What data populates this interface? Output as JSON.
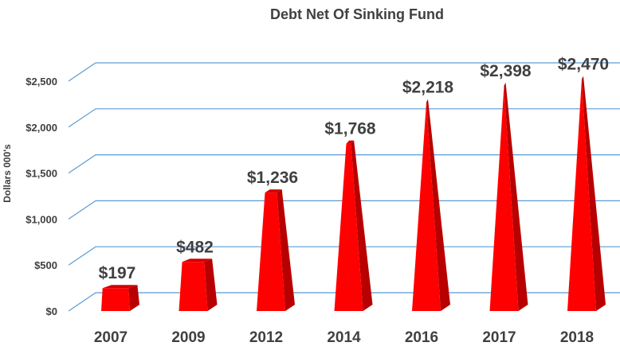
{
  "chart_data": {
    "type": "bar",
    "style": "3d-pyramid",
    "title": "Debt Net Of Sinking Fund",
    "ylabel": "Dollars 000's",
    "xlabel": "",
    "categories": [
      "2007",
      "2009",
      "2012",
      "2014",
      "2016",
      "2017",
      "2018"
    ],
    "values": [
      197,
      482,
      1236,
      1768,
      2218,
      2398,
      2470
    ],
    "data_labels": [
      "$197",
      "$482",
      "$1,236",
      "$1,768",
      "$2,218",
      "$2,398",
      "$2,470"
    ],
    "yticks": [
      0,
      500,
      1000,
      1500,
      2000,
      2500
    ],
    "ytick_labels": [
      "$0",
      "$500",
      "$1,000",
      "$1,500",
      "$2,000",
      "$2,500"
    ],
    "ylim": [
      0,
      2500
    ],
    "grid": true,
    "legend": "none",
    "colors": {
      "bar_front": "#ff0000",
      "bar_side": "#b80000",
      "bar_top": "#d40000",
      "grid": "#5b9bd5",
      "text": "#404040"
    }
  }
}
